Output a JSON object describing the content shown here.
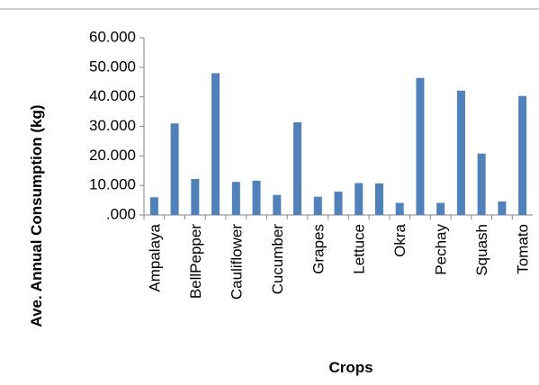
{
  "chart_data": {
    "type": "bar",
    "x_label": "Crops",
    "y_label": "Ave. Annual Consumption (kg)",
    "categories": [
      "Ampalaya",
      null,
      "BellPepper",
      null,
      "Cauliflower",
      null,
      "Cucumber",
      null,
      "Grapes",
      null,
      "Lettuce",
      null,
      "Okra",
      null,
      "Pechay",
      null,
      "Squash",
      null,
      "Tomato"
    ],
    "values": [
      6,
      31,
      12.2,
      48,
      11.2,
      11.6,
      6.8,
      31.4,
      6.2,
      7.9,
      10.8,
      10.7,
      4.1,
      46.4,
      4.1,
      42.1,
      20.8,
      4.6,
      40.3
    ],
    "color": "#4f81bd",
    "ylim": [
      0,
      60
    ],
    "yticks": [
      {
        "value": 0,
        "label": ".000"
      },
      {
        "value": 10,
        "label": "10.000"
      },
      {
        "value": 20,
        "label": "20.000"
      },
      {
        "value": 30,
        "label": "30.000"
      },
      {
        "value": 40,
        "label": "40.000"
      },
      {
        "value": 50,
        "label": "50.000"
      },
      {
        "value": 60,
        "label": "60.000"
      }
    ],
    "grid": false
  }
}
